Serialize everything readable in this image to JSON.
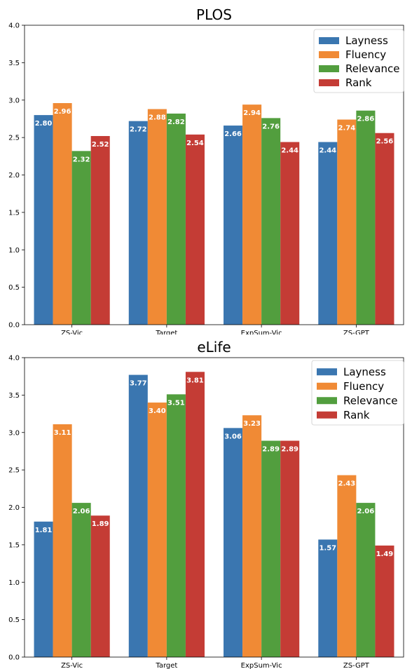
{
  "chart_data": [
    {
      "type": "bar",
      "title": "PLOS",
      "categories": [
        "ZS-Vic",
        "Target",
        "ExpSum-Vic",
        "ZS-GPT"
      ],
      "series": [
        {
          "name": "Layness",
          "color": "#3a76b0",
          "values": [
            2.8,
            2.72,
            2.66,
            2.44
          ]
        },
        {
          "name": "Fluency",
          "color": "#f08a35",
          "values": [
            2.96,
            2.88,
            2.94,
            2.74
          ]
        },
        {
          "name": "Relevance",
          "color": "#529e3e",
          "values": [
            2.32,
            2.82,
            2.76,
            2.86
          ]
        },
        {
          "name": "Rank",
          "color": "#c43c35",
          "values": [
            2.52,
            2.54,
            2.44,
            2.56
          ]
        }
      ],
      "data_labels": [
        [
          "2.80",
          "2.72",
          "2.66",
          "2.44"
        ],
        [
          "2.96",
          "2.88",
          "2.94",
          "2.74"
        ],
        [
          "2.32",
          "2.82",
          "2.76",
          "2.86"
        ],
        [
          "2.52",
          "2.54",
          "2.44",
          "2.56"
        ]
      ],
      "yticks": [
        "0.0",
        "0.5",
        "1.0",
        "1.5",
        "2.0",
        "2.5",
        "3.0",
        "3.5",
        "4.0"
      ],
      "ylim": [
        0,
        4
      ],
      "xlabel": "",
      "ylabel": "",
      "legend": "top-right",
      "grid": false
    },
    {
      "type": "bar",
      "title": "eLife",
      "categories": [
        "ZS-Vic",
        "Target",
        "ExpSum-Vic",
        "ZS-GPT"
      ],
      "series": [
        {
          "name": "Layness",
          "color": "#3a76b0",
          "values": [
            1.81,
            3.77,
            3.06,
            1.57
          ]
        },
        {
          "name": "Fluency",
          "color": "#f08a35",
          "values": [
            3.11,
            3.4,
            3.23,
            2.43
          ]
        },
        {
          "name": "Relevance",
          "color": "#529e3e",
          "values": [
            2.06,
            3.51,
            2.89,
            2.06
          ]
        },
        {
          "name": "Rank",
          "color": "#c43c35",
          "values": [
            1.89,
            3.81,
            2.89,
            1.49
          ]
        }
      ],
      "data_labels": [
        [
          "1.81",
          "3.77",
          "3.06",
          "1.57"
        ],
        [
          "3.11",
          "3.40",
          "3.23",
          "2.43"
        ],
        [
          "2.06",
          "3.51",
          "2.89",
          "2.06"
        ],
        [
          "1.89",
          "3.81",
          "2.89",
          "1.49"
        ]
      ],
      "yticks": [
        "0.0",
        "0.5",
        "1.0",
        "1.5",
        "2.0",
        "2.5",
        "3.0",
        "3.5",
        "4.0"
      ],
      "ylim": [
        0,
        4
      ],
      "xlabel": "",
      "ylabel": "",
      "legend": "top-right",
      "grid": false
    }
  ]
}
